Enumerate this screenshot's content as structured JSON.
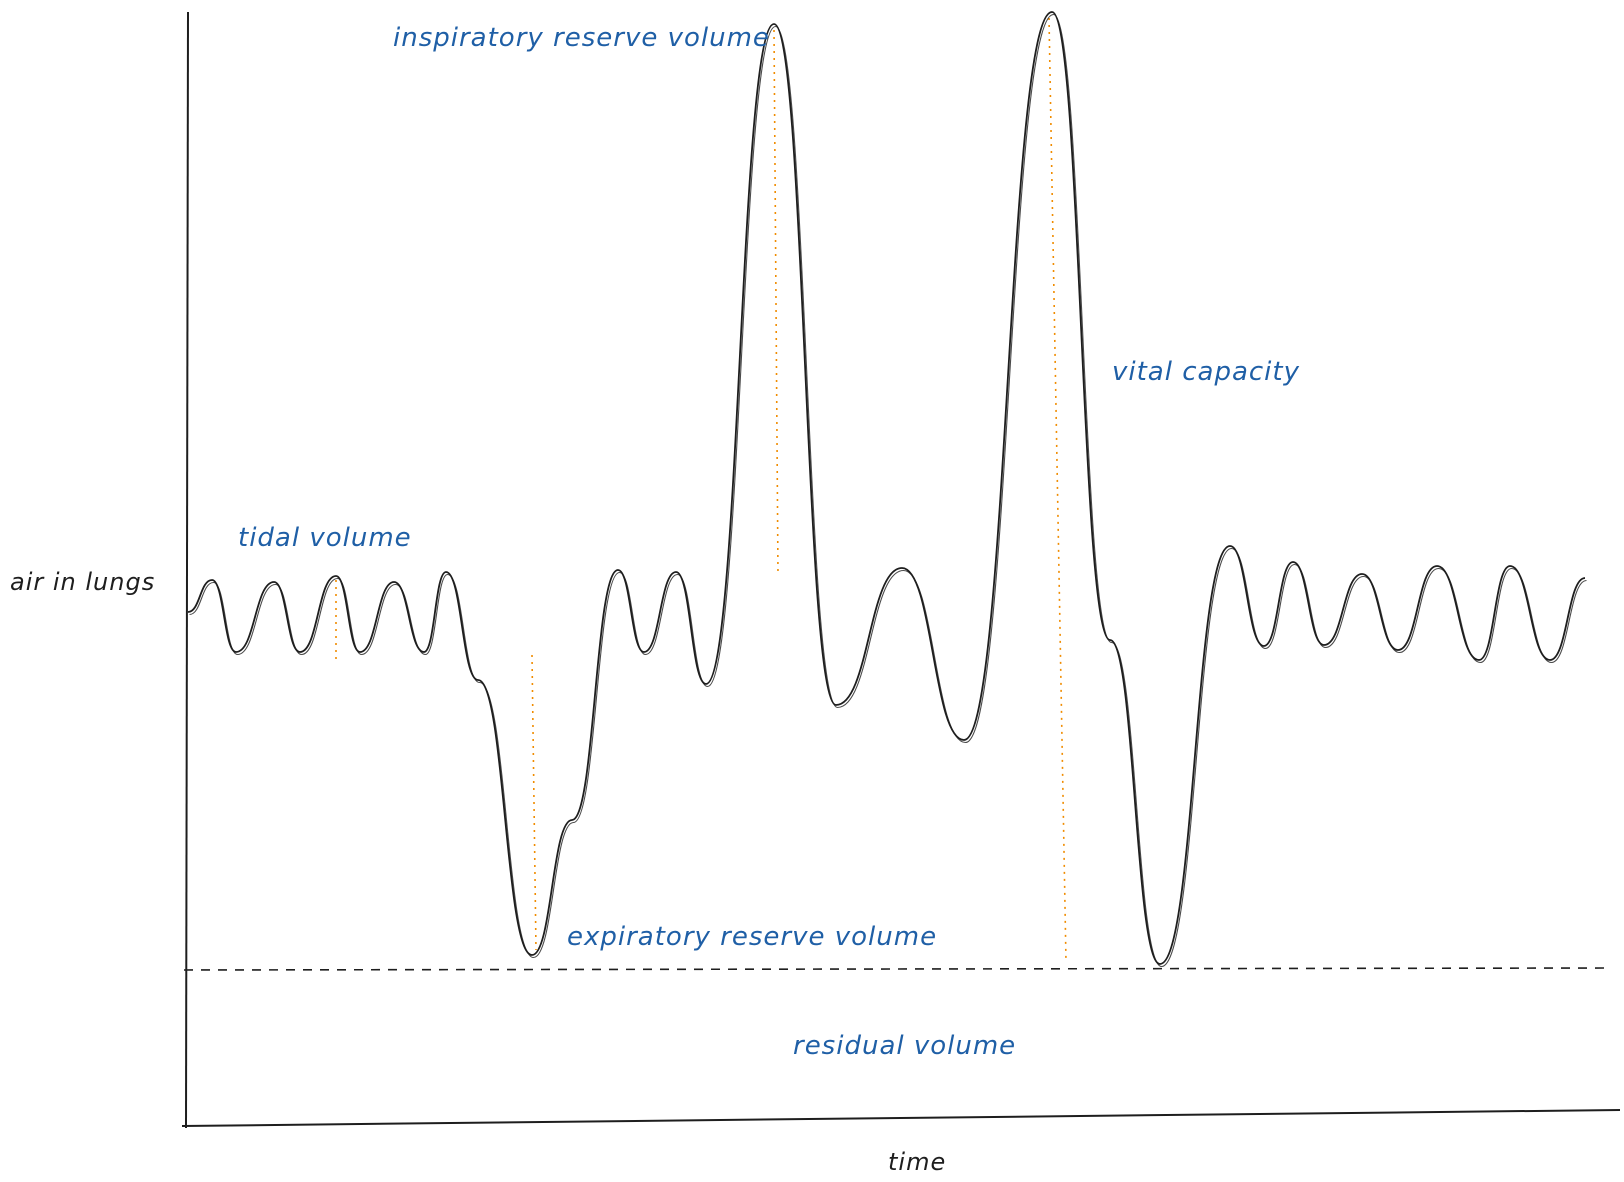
{
  "axes": {
    "y_label": "air in lungs",
    "x_label": "time"
  },
  "labels": {
    "tidal_volume": "tidal volume",
    "inspiratory_reserve_volume": "inspiratory reserve volume",
    "expiratory_reserve_volume": "expiratory reserve volume",
    "vital_capacity": "vital capacity",
    "residual_volume": "residual volume"
  },
  "colors": {
    "curve": "#1e1e1e",
    "annotation_text": "#1f5fa6",
    "marker_lines": "#f08c00",
    "baseline_dash": "#1e1e1e"
  }
}
